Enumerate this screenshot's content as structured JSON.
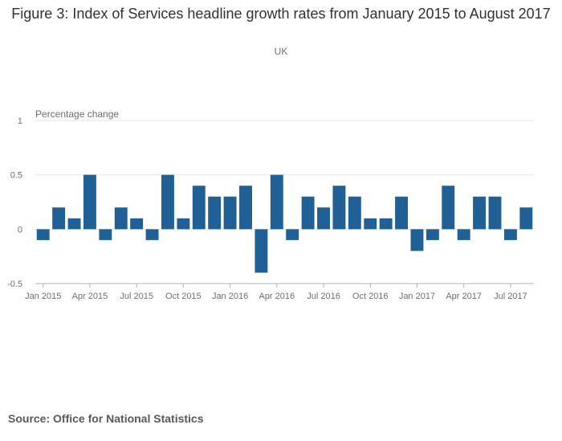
{
  "chart_data": {
    "type": "bar",
    "title": "Figure 3: Index of Services headline growth rates from January 2015 to August 2017",
    "subtitle": "UK",
    "ylabel": "Percentage change",
    "xlabel": "",
    "source": "Source: Office for National Statistics",
    "ylim": [
      -0.5,
      1
    ],
    "y_ticks": [
      -0.5,
      0,
      0.5,
      1
    ],
    "y_tick_labels": [
      "-0.5",
      "0",
      "0.5",
      "1"
    ],
    "grid": true,
    "bar_color": "#206095",
    "x_tick_labels": [
      "Jan 2015",
      "Apr 2015",
      "Jul 2015",
      "Oct 2015",
      "Jan 2016",
      "Apr 2016",
      "Jul 2016",
      "Oct 2016",
      "Jan 2017",
      "Apr 2017",
      "Jul 2017"
    ],
    "x_tick_every": 3,
    "categories": [
      "Jan 2015",
      "Feb 2015",
      "Mar 2015",
      "Apr 2015",
      "May 2015",
      "Jun 2015",
      "Jul 2015",
      "Aug 2015",
      "Sep 2015",
      "Oct 2015",
      "Nov 2015",
      "Dec 2015",
      "Jan 2016",
      "Feb 2016",
      "Mar 2016",
      "Apr 2016",
      "May 2016",
      "Jun 2016",
      "Jul 2016",
      "Aug 2016",
      "Sep 2016",
      "Oct 2016",
      "Nov 2016",
      "Dec 2016",
      "Jan 2017",
      "Feb 2017",
      "Mar 2017",
      "Apr 2017",
      "May 2017",
      "Jun 2017",
      "Jul 2017",
      "Aug 2017"
    ],
    "values": [
      -0.1,
      0.2,
      0.1,
      0.5,
      -0.1,
      0.2,
      0.1,
      -0.1,
      0.5,
      0.1,
      0.4,
      0.3,
      0.3,
      0.4,
      -0.4,
      0.5,
      -0.1,
      0.3,
      0.2,
      0.4,
      0.3,
      0.1,
      0.1,
      0.3,
      -0.2,
      -0.1,
      0.4,
      -0.1,
      0.3,
      0.3,
      -0.1,
      0.2
    ]
  }
}
